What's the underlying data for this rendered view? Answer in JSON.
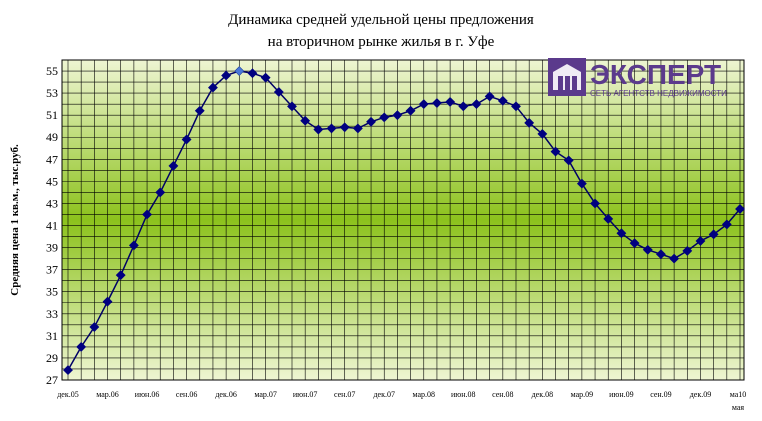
{
  "chart_data": {
    "type": "line",
    "title_lines": [
      "Динамика средней удельной цены предложения",
      "на вторичном рынке жилья в г. Уфе"
    ],
    "ylabel": "Средняя цена 1 кв.м., тыс.руб.",
    "xlabel": "",
    "ylim": [
      27,
      56
    ],
    "yticks": [
      27,
      29,
      31,
      33,
      35,
      37,
      39,
      41,
      43,
      45,
      47,
      49,
      51,
      53,
      55
    ],
    "grid": true,
    "legend": "none",
    "x_tick_labels": [
      "дек.05",
      "мар.06",
      "июн.06",
      "сен.06",
      "дек.06",
      "мар.07",
      "июн.07",
      "сен.07",
      "дек.07",
      "мар.08",
      "июн.08",
      "сен.08",
      "дек.08",
      "мар.09",
      "июн.09",
      "сен.09",
      "дек.09",
      "ма10"
    ],
    "x_last_extra_label": "мая",
    "x_tick_every": 3,
    "series": [
      {
        "values": [
          27.9,
          30.0,
          31.8,
          34.1,
          36.5,
          39.2,
          42.0,
          44.0,
          46.4,
          48.8,
          51.4,
          53.5,
          54.6,
          55.0,
          54.8,
          54.4,
          53.1,
          51.8,
          50.5,
          49.7,
          49.8,
          49.9,
          49.8,
          50.4,
          50.8,
          51.0,
          51.4,
          52.0,
          52.1,
          52.2,
          51.8,
          52.0,
          52.7,
          52.3,
          51.8,
          50.3,
          49.3,
          47.7,
          46.9,
          44.8,
          43.0,
          41.6,
          40.3,
          39.4,
          38.8,
          38.4,
          38.0,
          38.7,
          39.6,
          40.2,
          41.1,
          42.5
        ]
      }
    ],
    "highlight_index": 13,
    "colors": {
      "line": "#000066",
      "marker": "#000080",
      "highlight_marker": "#4a78d8",
      "grid": "#000000",
      "bg_edge": "#e6f0c2",
      "bg_center": "#8cc21c"
    }
  },
  "logo": {
    "name": "ЭКСПЕРТ",
    "tagline": "СЕТЬ АГЕНТСТВ НЕДВИЖИМОСТИ",
    "color": "#5b3a8c"
  }
}
